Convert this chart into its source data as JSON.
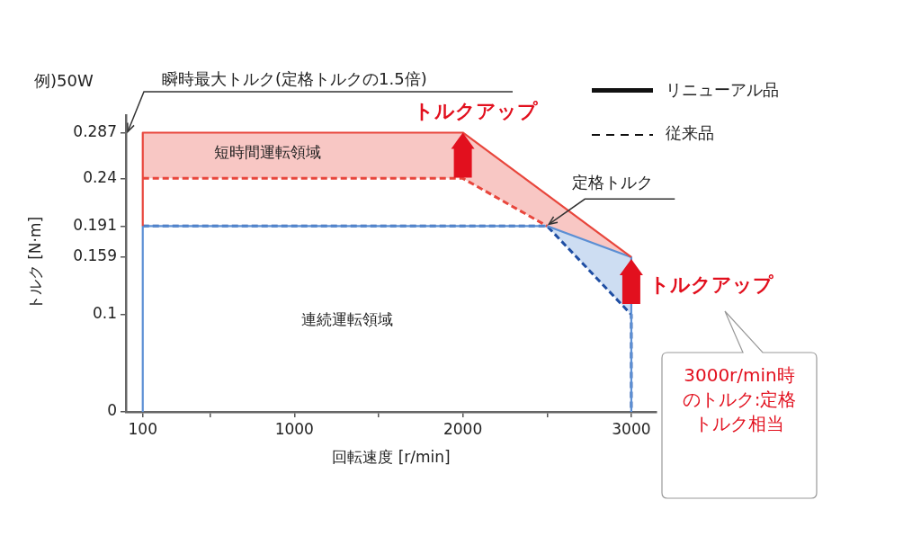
{
  "chart_data": {
    "type": "line",
    "xlabel": "回転速度 [r/min]",
    "ylabel": "トルク [N·m]",
    "xlim": [
      0,
      3150
    ],
    "ylim": [
      0,
      0.305
    ],
    "xticks": [
      100,
      {
        "value": 500,
        "label": null
      },
      1000,
      {
        "value": 1500,
        "label": null
      },
      2000,
      {
        "value": 2500,
        "label": null
      },
      3000
    ],
    "yticks": [
      0,
      0.1,
      0.159,
      0.191,
      0.24,
      0.287
    ],
    "grid": false,
    "marker": "none",
    "series": [
      {
        "color": "#e8463c",
        "line_style": "solid",
        "x": [
          100,
          100,
          2000,
          2500,
          3000
        ],
        "values": [
          0.191,
          0.287,
          0.287,
          0.223,
          0.159
        ],
        "upper": [
          0.191,
          0.287,
          0.287,
          0.223,
          0.159
        ],
        "lower": [
          0.191,
          0.24,
          0.24,
          0.191,
          0.159
        ]
      },
      {
        "color": "#e8463c",
        "line_style": "dashed",
        "x": [
          100,
          2000,
          2500
        ],
        "values": [
          0.24,
          0.24,
          0.191
        ]
      },
      {
        "color": "#5b8fd4",
        "line_style": "solid",
        "x": [
          100,
          100,
          2500,
          3000,
          3000
        ],
        "values": [
          0,
          0.191,
          0.191,
          0.159,
          0
        ],
        "upper": [
          0,
          0.191,
          0.191,
          0.159,
          0
        ],
        "lower": [
          0,
          0.191,
          0.191,
          0.1,
          0
        ]
      },
      {
        "color": "#1f4ea3",
        "line_style": "dashed",
        "x": [
          100,
          2500,
          3000,
          3000
        ],
        "values": [
          0.191,
          0.191,
          0.1,
          0
        ]
      }
    ],
    "annotations": [
      "例)50W",
      "瞬時最大トルク(定格トルクの1.5倍)",
      {
        "text": "トルクアップ",
        "x": 2000,
        "y": 0.287
      },
      {
        "text": "定格トルク",
        "x": 2500,
        "y": 0.191
      },
      {
        "text": "トルクアップ",
        "x": 3000,
        "y": 0.159
      },
      "3000r/min時のトルク:定格トルク相当",
      "短時間運転領域",
      "連続運転領域",
      "リニューアル品",
      "従来品"
    ]
  }
}
